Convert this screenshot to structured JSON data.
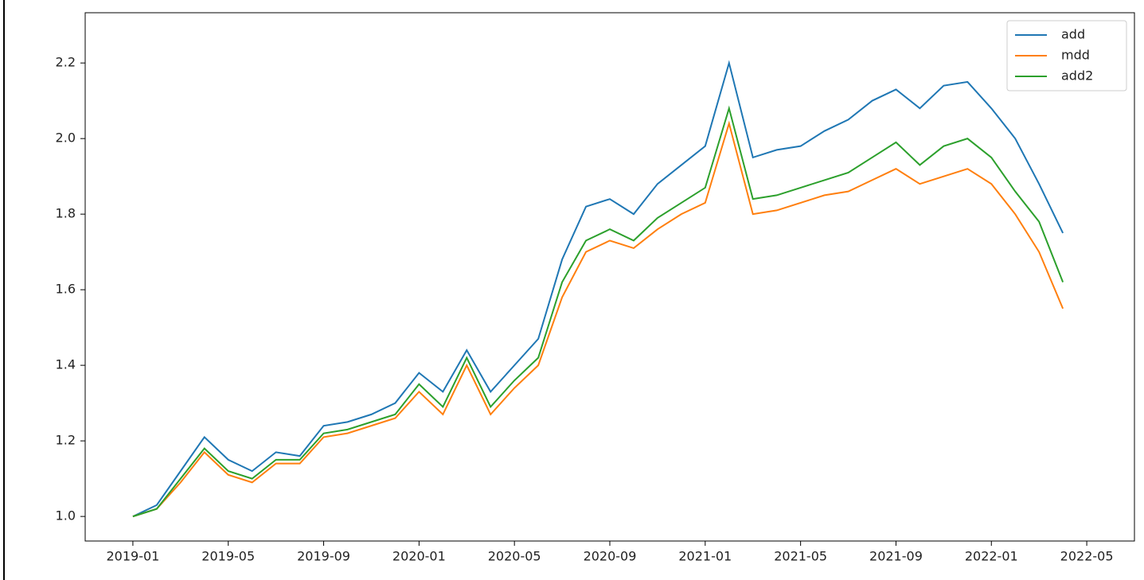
{
  "chart_data": {
    "type": "line",
    "x": [
      "2019-01",
      "2019-02",
      "2019-03",
      "2019-04",
      "2019-05",
      "2019-06",
      "2019-07",
      "2019-08",
      "2019-09",
      "2019-10",
      "2019-11",
      "2019-12",
      "2020-01",
      "2020-02",
      "2020-03",
      "2020-04",
      "2020-05",
      "2020-06",
      "2020-07",
      "2020-08",
      "2020-09",
      "2020-10",
      "2020-11",
      "2020-12",
      "2021-01",
      "2021-02",
      "2021-03",
      "2021-04",
      "2021-05",
      "2021-06",
      "2021-07",
      "2021-08",
      "2021-09",
      "2021-10",
      "2021-11",
      "2021-12",
      "2022-01",
      "2022-02",
      "2022-03",
      "2022-04"
    ],
    "series": [
      {
        "name": "add",
        "color": "#1f77b4",
        "values": [
          1.0,
          1.03,
          1.12,
          1.21,
          1.15,
          1.12,
          1.17,
          1.16,
          1.24,
          1.25,
          1.27,
          1.3,
          1.38,
          1.33,
          1.44,
          1.33,
          1.4,
          1.47,
          1.68,
          1.82,
          1.84,
          1.8,
          1.88,
          1.93,
          1.98,
          2.2,
          1.95,
          1.97,
          1.98,
          2.02,
          2.05,
          2.1,
          2.13,
          2.08,
          2.14,
          2.15,
          2.08,
          2.0,
          1.88,
          1.75
        ]
      },
      {
        "name": "mdd",
        "color": "#ff7f0e",
        "values": [
          1.0,
          1.02,
          1.09,
          1.17,
          1.11,
          1.09,
          1.14,
          1.14,
          1.21,
          1.22,
          1.24,
          1.26,
          1.33,
          1.27,
          1.4,
          1.27,
          1.34,
          1.4,
          1.58,
          1.7,
          1.73,
          1.71,
          1.76,
          1.8,
          1.83,
          2.04,
          1.8,
          1.81,
          1.83,
          1.85,
          1.86,
          1.89,
          1.92,
          1.88,
          1.9,
          1.92,
          1.88,
          1.8,
          1.7,
          1.55
        ]
      },
      {
        "name": "add2",
        "color": "#2ca02c",
        "values": [
          1.0,
          1.02,
          1.1,
          1.18,
          1.12,
          1.1,
          1.15,
          1.15,
          1.22,
          1.23,
          1.25,
          1.27,
          1.35,
          1.29,
          1.42,
          1.29,
          1.36,
          1.42,
          1.62,
          1.73,
          1.76,
          1.73,
          1.79,
          1.83,
          1.87,
          2.08,
          1.84,
          1.85,
          1.87,
          1.89,
          1.91,
          1.95,
          1.99,
          1.93,
          1.98,
          2.0,
          1.95,
          1.86,
          1.78,
          1.62
        ]
      }
    ],
    "xlim": [
      "2018-11",
      "2022-07"
    ],
    "xticks": [
      "2019-01",
      "2019-05",
      "2019-09",
      "2020-01",
      "2020-05",
      "2020-09",
      "2021-01",
      "2021-05",
      "2021-09",
      "2022-01",
      "2022-05"
    ],
    "ylim": [
      0.935,
      2.333
    ],
    "yticks": [
      1.0,
      1.2,
      1.4,
      1.6,
      1.8,
      2.0,
      2.2
    ],
    "legend": "upper right"
  }
}
